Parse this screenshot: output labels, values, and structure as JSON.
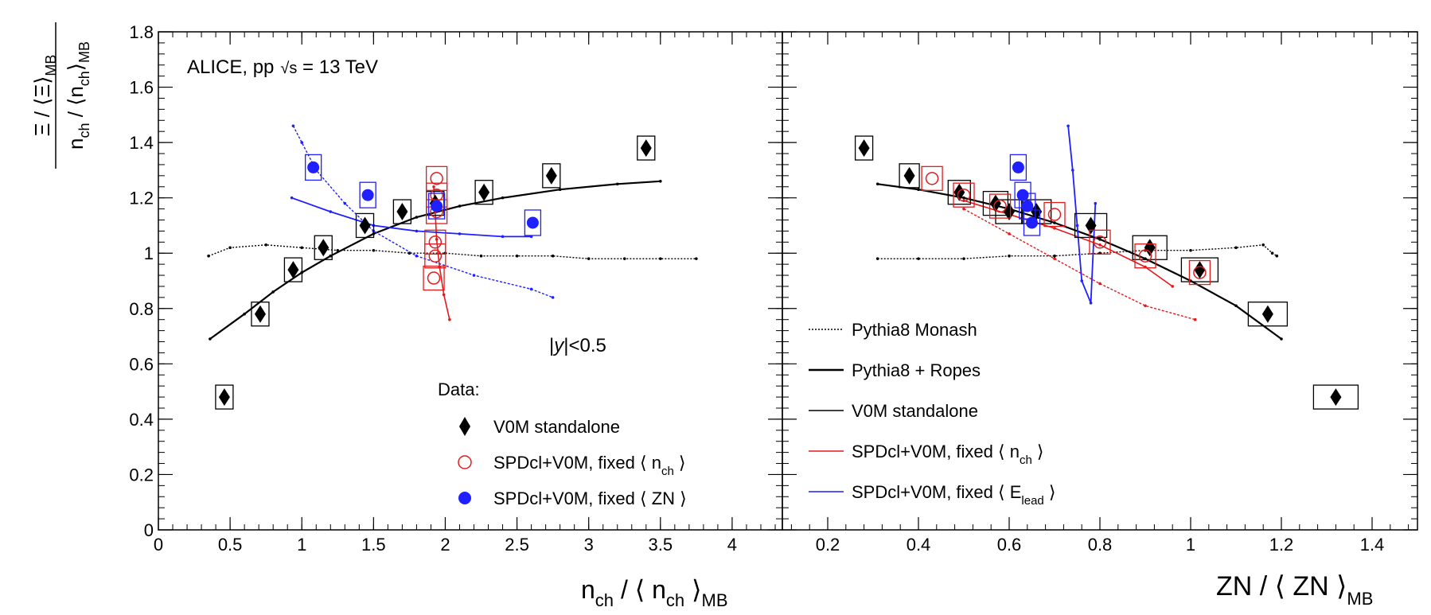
{
  "figure": {
    "ylabel_num_sym": "Ξ",
    "ylabel_num_sep": " / ⟨",
    "ylabel_num_sym2": "Ξ",
    "ylabel_num_close": "⟩",
    "ylabel_num_sub": "MB",
    "ylabel_den_pre": "n",
    "ylabel_den_sub1": "ch",
    "ylabel_den_mid": " / ⟨n",
    "ylabel_den_sub2": "ch",
    "ylabel_den_close": "⟩",
    "ylabel_den_sub3": "MB",
    "experiment": "ALICE, pp",
    "energy_sqrt": "√s",
    "energy_rest": " = 13 TeV",
    "rapidity_pre": "|",
    "rapidity_y": "y",
    "rapidity_post": "|<0.5",
    "data_legend_title": "Data:"
  },
  "legend_data": [
    {
      "label": "V0M standalone",
      "sub": "",
      "tail": ""
    },
    {
      "label": "SPDcl+V0M, fixed ⟨ n",
      "sub": "ch",
      "tail": " ⟩"
    },
    {
      "label": "SPDcl+V0M, fixed ⟨ ZN ⟩",
      "sub": "",
      "tail": ""
    }
  ],
  "legend_models": [
    {
      "label": "Pythia8 Monash",
      "sub": "",
      "tail": ""
    },
    {
      "label": "Pythia8 + Ropes",
      "sub": "",
      "tail": ""
    },
    {
      "label": "V0M standalone",
      "sub": "",
      "tail": ""
    },
    {
      "label": "SPDcl+V0M, fixed ⟨ n",
      "sub": "ch",
      "tail": " ⟩"
    },
    {
      "label": "SPDcl+V0M, fixed ⟨ E",
      "sub": "lead",
      "tail": " ⟩"
    }
  ],
  "colors": {
    "black": "#000000",
    "red": "#e31a1c",
    "blue": "#1f1fff",
    "gray": "#666666"
  },
  "chart_data": [
    {
      "type": "scatter",
      "xlabel_main": "n",
      "xlabel_sub1": "ch",
      "xlabel_mid": " / ⟨ n",
      "xlabel_sub2": "ch",
      "xlabel_close": " ⟩",
      "xlabel_sub3": "MB",
      "xlim": [
        0,
        4.35
      ],
      "ylim": [
        0,
        1.8
      ],
      "xticks": [
        "0",
        "0.5",
        "1",
        "1.5",
        "2",
        "2.5",
        "3",
        "3.5",
        "4"
      ],
      "yticks": [
        "0",
        "0.2",
        "0.4",
        "0.6",
        "0.8",
        "1",
        "1.2",
        "1.4",
        "1.6",
        "1.8"
      ],
      "series": [
        {
          "name": "V0M standalone",
          "x": [
            0.46,
            0.71,
            0.94,
            1.15,
            1.44,
            1.7,
            1.93,
            2.27,
            2.74,
            3.4
          ],
          "y": [
            0.48,
            0.78,
            0.94,
            1.02,
            1.1,
            1.15,
            1.18,
            1.22,
            1.28,
            1.38
          ]
        },
        {
          "name": "SPDcl+V0M, fixed ⟨ nch ⟩",
          "x": [
            1.92,
            1.93,
            1.93,
            1.94,
            1.94,
            1.94
          ],
          "y": [
            0.91,
            0.99,
            1.04,
            1.15,
            1.21,
            1.27
          ]
        },
        {
          "name": "SPDcl+V0M, fixed ⟨ ZN ⟩",
          "x": [
            1.08,
            1.46,
            1.94,
            2.61
          ],
          "y": [
            1.31,
            1.21,
            1.17,
            1.11
          ]
        }
      ],
      "models": [
        {
          "name": "Pythia8 Monash",
          "x": [
            0.35,
            0.5,
            0.75,
            1.0,
            1.25,
            1.5,
            1.75,
            2.0,
            2.25,
            2.5,
            2.75,
            3.0,
            3.25,
            3.5,
            3.75
          ],
          "y": [
            0.99,
            1.02,
            1.03,
            1.02,
            1.01,
            1.01,
            1.0,
            1.0,
            0.99,
            0.99,
            0.99,
            0.98,
            0.98,
            0.98,
            0.98
          ]
        },
        {
          "name": "V0M standalone",
          "x": [
            0.36,
            0.6,
            0.8,
            1.0,
            1.2,
            1.5,
            1.8,
            2.1,
            2.4,
            2.8,
            3.2,
            3.5
          ],
          "y": [
            0.69,
            0.78,
            0.86,
            0.93,
            0.99,
            1.07,
            1.13,
            1.17,
            1.2,
            1.23,
            1.25,
            1.26
          ]
        },
        {
          "name": "SPDcl+V0M, fixed ⟨ nch ⟩",
          "x": [
            1.92,
            1.93,
            1.94,
            1.96,
            1.99,
            2.03
          ],
          "y": [
            1.24,
            1.15,
            1.05,
            0.95,
            0.85,
            0.76
          ]
        },
        {
          "name": "SPDcl+V0M, fixed ⟨ Elead ⟩",
          "x": [
            0.93,
            1.2,
            1.5,
            1.8,
            2.1,
            2.4,
            2.6
          ],
          "y": [
            1.2,
            1.15,
            1.1,
            1.08,
            1.07,
            1.06,
            1.06
          ]
        },
        {
          "name": "SPDcl+V0M, fixed ⟨ Elead ⟩ (2)",
          "x": [
            0.94,
            1.0,
            1.1,
            1.3,
            1.5,
            1.8,
            2.2,
            2.6,
            2.75
          ],
          "y": [
            1.46,
            1.4,
            1.3,
            1.18,
            1.08,
            0.99,
            0.92,
            0.87,
            0.84
          ]
        }
      ]
    },
    {
      "type": "scatter",
      "xlabel_main": "ZN / ⟨ ZN ⟩",
      "xlabel_sub3": "MB",
      "xlim": [
        0.1,
        1.5
      ],
      "ylim": [
        0,
        1.8
      ],
      "xticks": [
        "0.2",
        "0.4",
        "0.6",
        "0.8",
        "1",
        "1.2",
        "1.4"
      ],
      "series": [
        {
          "name": "V0M standalone",
          "x": [
            0.28,
            0.38,
            0.49,
            0.57,
            0.6,
            0.66,
            0.78,
            0.91,
            1.02,
            1.17,
            1.32
          ],
          "y": [
            1.38,
            1.28,
            1.22,
            1.18,
            1.15,
            1.15,
            1.1,
            1.02,
            0.94,
            0.78,
            0.48
          ]
        },
        {
          "name": "SPDcl+V0M, fixed ⟨ nch ⟩",
          "x": [
            0.43,
            0.5,
            0.58,
            0.7,
            0.8,
            0.9,
            1.02
          ],
          "y": [
            1.27,
            1.21,
            1.17,
            1.14,
            1.04,
            0.99,
            0.93
          ]
        },
        {
          "name": "SPDcl+V0M, fixed ⟨ ZN ⟩",
          "x": [
            0.62,
            0.63,
            0.64,
            0.65
          ],
          "y": [
            1.31,
            1.21,
            1.17,
            1.11
          ]
        }
      ],
      "models": [
        {
          "name": "Pythia8 Monash",
          "x": [
            0.31,
            0.4,
            0.5,
            0.6,
            0.7,
            0.8,
            0.9,
            1.0,
            1.1,
            1.16,
            1.18,
            1.19
          ],
          "y": [
            0.98,
            0.98,
            0.98,
            0.99,
            0.99,
            1.0,
            1.01,
            1.01,
            1.02,
            1.03,
            1.0,
            0.99
          ]
        },
        {
          "name": "Pythia8 + Ropes",
          "x": [
            0.31,
            0.4,
            0.5,
            0.6,
            0.7,
            0.8,
            0.9,
            1.0,
            1.1,
            1.2
          ],
          "y": [
            1.25,
            1.23,
            1.2,
            1.16,
            1.11,
            1.05,
            0.98,
            0.9,
            0.81,
            0.69
          ]
        },
        {
          "name": "SPDcl+V0M, fixed ⟨ nch ⟩",
          "x": [
            0.5,
            0.6,
            0.7,
            0.8,
            0.9,
            0.96
          ],
          "y": [
            1.19,
            1.14,
            1.09,
            1.03,
            0.95,
            0.88
          ]
        },
        {
          "name": "SPDcl+V0M, fixed ⟨ nch ⟩ (2)",
          "x": [
            0.5,
            0.6,
            0.7,
            0.8,
            0.9,
            1.01
          ],
          "y": [
            1.16,
            1.07,
            0.98,
            0.89,
            0.81,
            0.76
          ]
        },
        {
          "name": "SPDcl+V0M, fixed ⟨ Elead ⟩",
          "x": [
            0.73,
            0.74,
            0.75,
            0.76,
            0.78,
            0.79
          ],
          "y": [
            1.46,
            1.3,
            1.1,
            0.9,
            0.82,
            1.18
          ]
        }
      ]
    }
  ]
}
